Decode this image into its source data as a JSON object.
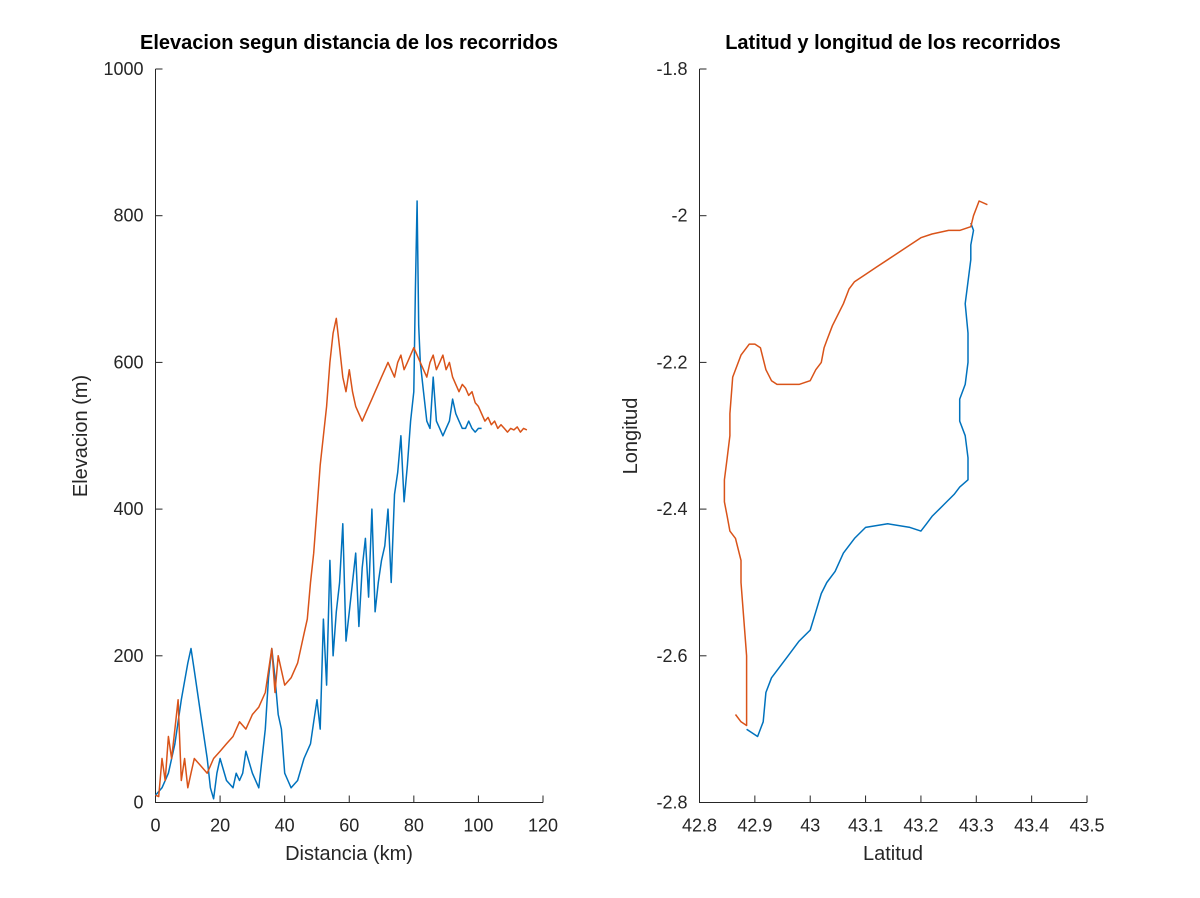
{
  "chart_data": [
    {
      "type": "line",
      "title": "Elevacion segun distancia de los recorridos",
      "xlabel": "Distancia (km)",
      "ylabel": "Elevacion (m)",
      "xlim": [
        0,
        120
      ],
      "ylim": [
        0,
        1000
      ],
      "xticks": [
        0,
        20,
        40,
        60,
        80,
        100,
        120
      ],
      "yticks": [
        0,
        200,
        400,
        600,
        800,
        1000
      ],
      "grid": false,
      "series": [
        {
          "color": "#0072BD",
          "x": [
            0,
            2,
            4,
            6,
            8,
            10,
            11,
            12,
            14,
            16,
            17,
            18,
            19,
            20,
            22,
            24,
            25,
            26,
            27,
            28,
            30,
            32,
            34,
            35,
            36,
            37,
            38,
            39,
            40,
            41,
            42,
            44,
            46,
            48,
            49,
            50,
            51,
            52,
            53,
            54,
            55,
            56,
            57,
            58,
            59,
            60,
            61,
            62,
            63,
            64,
            65,
            66,
            67,
            68,
            69,
            70,
            71,
            72,
            73,
            74,
            75,
            76,
            77,
            78,
            79,
            80,
            80.5,
            81,
            81.5,
            82,
            83,
            84,
            85,
            86,
            87,
            88,
            89,
            90,
            91,
            92,
            93,
            94,
            95,
            96,
            97,
            98,
            99,
            100,
            101
          ],
          "y": [
            10,
            20,
            40,
            80,
            140,
            190,
            210,
            180,
            120,
            60,
            20,
            5,
            40,
            60,
            30,
            20,
            40,
            30,
            40,
            70,
            40,
            20,
            100,
            170,
            210,
            170,
            120,
            100,
            40,
            30,
            20,
            30,
            60,
            80,
            110,
            140,
            100,
            250,
            160,
            330,
            200,
            260,
            300,
            380,
            220,
            260,
            300,
            340,
            240,
            320,
            360,
            280,
            400,
            260,
            300,
            330,
            350,
            400,
            300,
            420,
            450,
            500,
            410,
            460,
            520,
            560,
            700,
            820,
            650,
            600,
            560,
            520,
            510,
            580,
            520,
            510,
            500,
            510,
            520,
            550,
            530,
            520,
            510,
            510,
            520,
            510,
            505,
            510,
            510
          ]
        },
        {
          "color": "#D95319",
          "x": [
            0,
            1,
            2,
            3,
            4,
            5,
            6,
            7,
            8,
            9,
            10,
            11,
            12,
            14,
            16,
            18,
            20,
            22,
            24,
            26,
            28,
            30,
            32,
            34,
            36,
            37,
            38,
            40,
            42,
            44,
            46,
            47,
            48,
            49,
            50,
            51,
            52,
            53,
            54,
            55,
            56,
            57,
            58,
            59,
            60,
            61,
            62,
            63,
            64,
            65,
            66,
            67,
            68,
            69,
            70,
            71,
            72,
            73,
            74,
            75,
            76,
            77,
            78,
            79,
            80,
            81,
            82,
            83,
            84,
            85,
            86,
            87,
            88,
            89,
            90,
            91,
            92,
            93,
            94,
            95,
            96,
            97,
            98,
            99,
            100,
            101,
            102,
            103,
            104,
            105,
            106,
            107,
            108,
            109,
            110,
            111,
            112,
            113,
            114,
            115
          ],
          "y": [
            10,
            8,
            60,
            30,
            90,
            60,
            100,
            140,
            30,
            60,
            20,
            40,
            60,
            50,
            40,
            60,
            70,
            80,
            90,
            110,
            100,
            120,
            130,
            150,
            210,
            150,
            200,
            160,
            170,
            190,
            230,
            250,
            300,
            340,
            400,
            460,
            500,
            540,
            600,
            640,
            660,
            620,
            580,
            560,
            590,
            560,
            540,
            530,
            520,
            530,
            540,
            550,
            560,
            570,
            580,
            590,
            600,
            590,
            580,
            600,
            610,
            590,
            600,
            610,
            620,
            610,
            600,
            590,
            580,
            600,
            610,
            590,
            600,
            610,
            590,
            600,
            580,
            570,
            560,
            570,
            565,
            555,
            560,
            545,
            540,
            530,
            520,
            525,
            515,
            520,
            510,
            515,
            510,
            505,
            510,
            508,
            512,
            505,
            510,
            508
          ]
        }
      ]
    },
    {
      "type": "line",
      "title": "Latitud y longitud de los recorridos",
      "xlabel": "Latitud",
      "ylabel": "Longitud",
      "xlim": [
        42.8,
        43.5
      ],
      "ylim": [
        -2.8,
        -1.8
      ],
      "xticks": [
        42.8,
        42.9,
        43,
        43.1,
        43.2,
        43.3,
        43.4,
        43.5
      ],
      "yticks": [
        -2.8,
        -2.6,
        -2.4,
        -2.2,
        -2,
        -1.8
      ],
      "grid": false,
      "series": [
        {
          "color": "#0072BD",
          "x": [
            42.885,
            42.905,
            42.915,
            42.92,
            42.93,
            42.945,
            42.96,
            42.98,
            43.0,
            43.01,
            43.02,
            43.03,
            43.045,
            43.06,
            43.08,
            43.1,
            43.14,
            43.18,
            43.2,
            43.21,
            43.22,
            43.24,
            43.26,
            43.27,
            43.285,
            43.285,
            43.28,
            43.27,
            43.27,
            43.28,
            43.285,
            43.285,
            43.28,
            43.285,
            43.29,
            43.29,
            43.295,
            43.29
          ],
          "y": [
            -2.7,
            -2.71,
            -2.69,
            -2.65,
            -2.63,
            -2.615,
            -2.6,
            -2.58,
            -2.565,
            -2.54,
            -2.515,
            -2.5,
            -2.485,
            -2.46,
            -2.44,
            -2.425,
            -2.42,
            -2.425,
            -2.43,
            -2.42,
            -2.41,
            -2.395,
            -2.38,
            -2.37,
            -2.36,
            -2.33,
            -2.3,
            -2.28,
            -2.25,
            -2.23,
            -2.2,
            -2.16,
            -2.12,
            -2.09,
            -2.06,
            -2.04,
            -2.02,
            -2.01
          ]
        },
        {
          "color": "#D95319",
          "x": [
            42.865,
            42.875,
            42.885,
            42.885,
            42.885,
            42.88,
            42.875,
            42.875,
            42.865,
            42.855,
            42.85,
            42.845,
            42.845,
            42.85,
            42.855,
            42.855,
            42.86,
            42.875,
            42.89,
            42.9,
            42.91,
            42.92,
            42.93,
            42.94,
            42.96,
            42.98,
            43.0,
            43.01,
            43.02,
            43.025,
            43.03,
            43.04,
            43.06,
            43.07,
            43.08,
            43.1,
            43.12,
            43.15,
            43.18,
            43.2,
            43.22,
            43.25,
            43.27,
            43.29,
            43.295,
            43.3,
            43.305,
            43.32
          ],
          "y": [
            -2.68,
            -2.69,
            -2.695,
            -2.65,
            -2.6,
            -2.55,
            -2.5,
            -2.47,
            -2.44,
            -2.43,
            -2.41,
            -2.39,
            -2.36,
            -2.33,
            -2.3,
            -2.27,
            -2.22,
            -2.19,
            -2.175,
            -2.175,
            -2.18,
            -2.21,
            -2.225,
            -2.23,
            -2.23,
            -2.23,
            -2.225,
            -2.21,
            -2.2,
            -2.18,
            -2.17,
            -2.15,
            -2.12,
            -2.1,
            -2.09,
            -2.08,
            -2.07,
            -2.055,
            -2.04,
            -2.03,
            -2.025,
            -2.02,
            -2.02,
            -2.015,
            -2.0,
            -1.99,
            -1.98,
            -1.985
          ]
        }
      ]
    }
  ]
}
